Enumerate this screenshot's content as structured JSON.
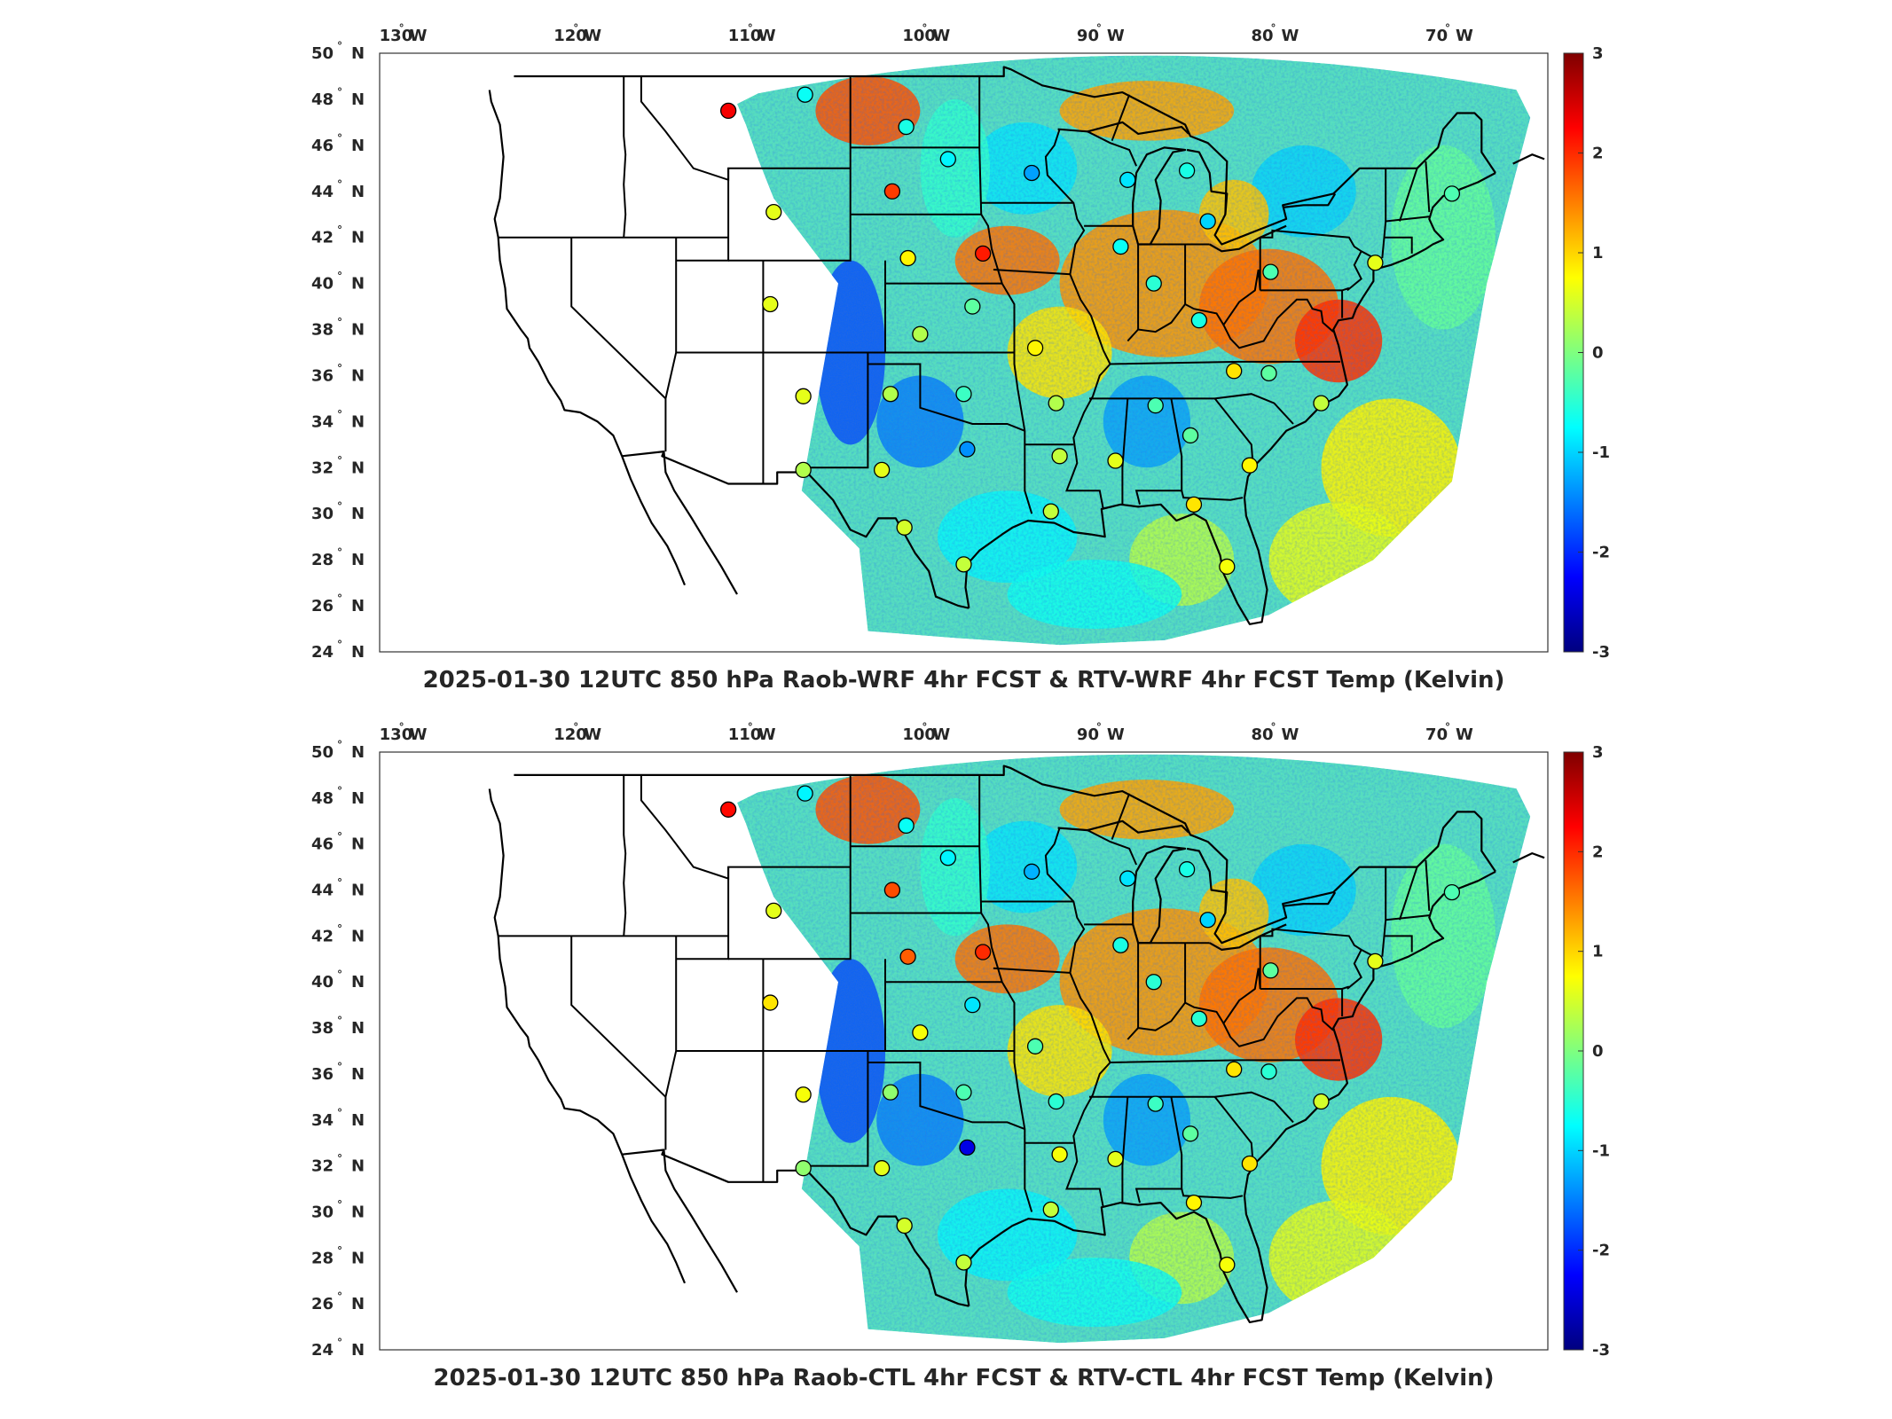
{
  "figure": {
    "units_label": "Temp (Kelvin)",
    "colorbar": {
      "min": -3,
      "max": 3,
      "ticks": [
        "3",
        "2",
        "1",
        "0",
        "-1",
        "-2",
        "-3"
      ],
      "colormap": [
        "#00007f",
        "#0000ff",
        "#007fff",
        "#00ffff",
        "#7fff7f",
        "#ffff00",
        "#ff7f00",
        "#ff0000",
        "#7f0000"
      ]
    },
    "lon_ticks": [
      {
        "deg": "130",
        "hemi": "W"
      },
      {
        "deg": "120",
        "hemi": "W"
      },
      {
        "deg": "110",
        "hemi": "W"
      },
      {
        "deg": "100",
        "hemi": "W"
      },
      {
        "deg": "90",
        "hemi": "W"
      },
      {
        "deg": "80",
        "hemi": "W"
      },
      {
        "deg": "70",
        "hemi": "W"
      }
    ],
    "lat_ticks": [
      {
        "deg": "50",
        "hemi": "N"
      },
      {
        "deg": "48",
        "hemi": "N"
      },
      {
        "deg": "46",
        "hemi": "N"
      },
      {
        "deg": "44",
        "hemi": "N"
      },
      {
        "deg": "42",
        "hemi": "N"
      },
      {
        "deg": "40",
        "hemi": "N"
      },
      {
        "deg": "38",
        "hemi": "N"
      },
      {
        "deg": "36",
        "hemi": "N"
      },
      {
        "deg": "34",
        "hemi": "N"
      },
      {
        "deg": "32",
        "hemi": "N"
      },
      {
        "deg": "30",
        "hemi": "N"
      },
      {
        "deg": "28",
        "hemi": "N"
      },
      {
        "deg": "26",
        "hemi": "N"
      },
      {
        "deg": "24",
        "hemi": "N"
      }
    ],
    "extent": {
      "lon_min": -131,
      "lon_max": -64,
      "lat_min": 24,
      "lat_max": 50
    }
  },
  "panels": [
    {
      "id": "top",
      "title": "2025-01-30 12UTC 850 hPa Raob-WRF 4hr FCST & RTV-WRF 4hr FCST Temp (Kelvin)",
      "raob_stations": [
        {
          "lon": -111.0,
          "lat": 47.5,
          "value": 2.3
        },
        {
          "lon": -106.6,
          "lat": 48.2,
          "value": -0.7
        },
        {
          "lon": -100.8,
          "lat": 46.8,
          "value": -0.6
        },
        {
          "lon": -98.4,
          "lat": 45.4,
          "value": -0.8
        },
        {
          "lon": -93.6,
          "lat": 44.8,
          "value": -1.3
        },
        {
          "lon": -88.1,
          "lat": 44.5,
          "value": -0.9
        },
        {
          "lon": -84.7,
          "lat": 44.9,
          "value": -0.6
        },
        {
          "lon": -101.6,
          "lat": 44.0,
          "value": 1.9
        },
        {
          "lon": -108.4,
          "lat": 43.1,
          "value": 0.6
        },
        {
          "lon": -100.7,
          "lat": 41.1,
          "value": 0.8
        },
        {
          "lon": -96.4,
          "lat": 41.3,
          "value": 2.1
        },
        {
          "lon": -83.5,
          "lat": 42.7,
          "value": -1.0
        },
        {
          "lon": -88.5,
          "lat": 41.6,
          "value": -0.7
        },
        {
          "lon": -86.6,
          "lat": 40.0,
          "value": -0.5
        },
        {
          "lon": -79.9,
          "lat": 40.5,
          "value": -0.3
        },
        {
          "lon": -84.0,
          "lat": 38.4,
          "value": -0.6
        },
        {
          "lon": -97.0,
          "lat": 39.0,
          "value": -0.2
        },
        {
          "lon": -108.6,
          "lat": 39.1,
          "value": 0.6
        },
        {
          "lon": -100.0,
          "lat": 37.8,
          "value": 0.3
        },
        {
          "lon": -93.4,
          "lat": 37.2,
          "value": 0.8
        },
        {
          "lon": -82.0,
          "lat": 36.2,
          "value": 0.9
        },
        {
          "lon": -80.0,
          "lat": 36.1,
          "value": -0.2
        },
        {
          "lon": -106.7,
          "lat": 35.1,
          "value": 0.6
        },
        {
          "lon": -101.7,
          "lat": 35.2,
          "value": 0.3
        },
        {
          "lon": -97.5,
          "lat": 35.2,
          "value": -0.4
        },
        {
          "lon": -92.2,
          "lat": 34.8,
          "value": 0.3
        },
        {
          "lon": -86.5,
          "lat": 34.7,
          "value": -0.3
        },
        {
          "lon": -84.5,
          "lat": 33.4,
          "value": -0.2
        },
        {
          "lon": -77.0,
          "lat": 34.8,
          "value": 0.4
        },
        {
          "lon": -97.3,
          "lat": 32.8,
          "value": -1.4
        },
        {
          "lon": -92.0,
          "lat": 32.5,
          "value": 0.4
        },
        {
          "lon": -88.8,
          "lat": 32.3,
          "value": 0.6
        },
        {
          "lon": -81.1,
          "lat": 32.1,
          "value": 0.8
        },
        {
          "lon": -106.7,
          "lat": 31.9,
          "value": 0.3
        },
        {
          "lon": -102.2,
          "lat": 31.9,
          "value": 0.6
        },
        {
          "lon": -92.5,
          "lat": 30.1,
          "value": 0.4
        },
        {
          "lon": -84.3,
          "lat": 30.4,
          "value": 0.9
        },
        {
          "lon": -100.9,
          "lat": 29.4,
          "value": 0.5
        },
        {
          "lon": -97.5,
          "lat": 27.8,
          "value": 0.4
        },
        {
          "lon": -82.4,
          "lat": 27.7,
          "value": 0.7
        },
        {
          "lon": -69.5,
          "lat": 43.9,
          "value": -0.3
        },
        {
          "lon": -73.9,
          "lat": 40.9,
          "value": 0.6
        }
      ]
    },
    {
      "id": "bottom",
      "title": "2025-01-30 12UTC 850 hPa Raob-CTL 4hr FCST & RTV-CTL 4hr FCST Temp (Kelvin)",
      "raob_stations": [
        {
          "lon": -111.0,
          "lat": 47.5,
          "value": 2.2
        },
        {
          "lon": -106.6,
          "lat": 48.2,
          "value": -0.8
        },
        {
          "lon": -100.8,
          "lat": 46.8,
          "value": -0.7
        },
        {
          "lon": -98.4,
          "lat": 45.4,
          "value": -0.8
        },
        {
          "lon": -93.6,
          "lat": 44.8,
          "value": -1.2
        },
        {
          "lon": -88.1,
          "lat": 44.5,
          "value": -0.9
        },
        {
          "lon": -84.7,
          "lat": 44.9,
          "value": -0.6
        },
        {
          "lon": -101.6,
          "lat": 44.0,
          "value": 1.8
        },
        {
          "lon": -108.4,
          "lat": 43.1,
          "value": 0.6
        },
        {
          "lon": -100.7,
          "lat": 41.1,
          "value": 1.7
        },
        {
          "lon": -96.4,
          "lat": 41.3,
          "value": 2.0
        },
        {
          "lon": -83.5,
          "lat": 42.7,
          "value": -1.0
        },
        {
          "lon": -88.5,
          "lat": 41.6,
          "value": -0.6
        },
        {
          "lon": -86.6,
          "lat": 40.0,
          "value": -0.5
        },
        {
          "lon": -79.9,
          "lat": 40.5,
          "value": -0.2
        },
        {
          "lon": -84.0,
          "lat": 38.4,
          "value": -0.5
        },
        {
          "lon": -97.0,
          "lat": 39.0,
          "value": -0.9
        },
        {
          "lon": -108.6,
          "lat": 39.1,
          "value": 0.9
        },
        {
          "lon": -100.0,
          "lat": 37.8,
          "value": 0.7
        },
        {
          "lon": -93.4,
          "lat": 37.2,
          "value": -0.3
        },
        {
          "lon": -82.0,
          "lat": 36.2,
          "value": 0.9
        },
        {
          "lon": -80.0,
          "lat": 36.1,
          "value": -0.5
        },
        {
          "lon": -106.7,
          "lat": 35.1,
          "value": 0.7
        },
        {
          "lon": -101.7,
          "lat": 35.2,
          "value": 0.1
        },
        {
          "lon": -97.5,
          "lat": 35.2,
          "value": -0.3
        },
        {
          "lon": -92.2,
          "lat": 34.8,
          "value": -0.5
        },
        {
          "lon": -86.5,
          "lat": 34.7,
          "value": -0.4
        },
        {
          "lon": -84.5,
          "lat": 33.4,
          "value": -0.2
        },
        {
          "lon": -77.0,
          "lat": 34.8,
          "value": 0.5
        },
        {
          "lon": -97.3,
          "lat": 32.8,
          "value": -2.4
        },
        {
          "lon": -92.0,
          "lat": 32.5,
          "value": 0.7
        },
        {
          "lon": -88.8,
          "lat": 32.3,
          "value": 0.6
        },
        {
          "lon": -81.1,
          "lat": 32.1,
          "value": 0.9
        },
        {
          "lon": -106.7,
          "lat": 31.9,
          "value": 0.1
        },
        {
          "lon": -102.2,
          "lat": 31.9,
          "value": 0.6
        },
        {
          "lon": -92.5,
          "lat": 30.1,
          "value": 0.4
        },
        {
          "lon": -84.3,
          "lat": 30.4,
          "value": 0.8
        },
        {
          "lon": -100.9,
          "lat": 29.4,
          "value": 0.5
        },
        {
          "lon": -97.5,
          "lat": 27.8,
          "value": 0.4
        },
        {
          "lon": -82.4,
          "lat": 27.7,
          "value": 0.7
        },
        {
          "lon": -69.5,
          "lat": 43.9,
          "value": -0.3
        },
        {
          "lon": -73.9,
          "lat": 40.9,
          "value": 0.6
        }
      ]
    }
  ]
}
